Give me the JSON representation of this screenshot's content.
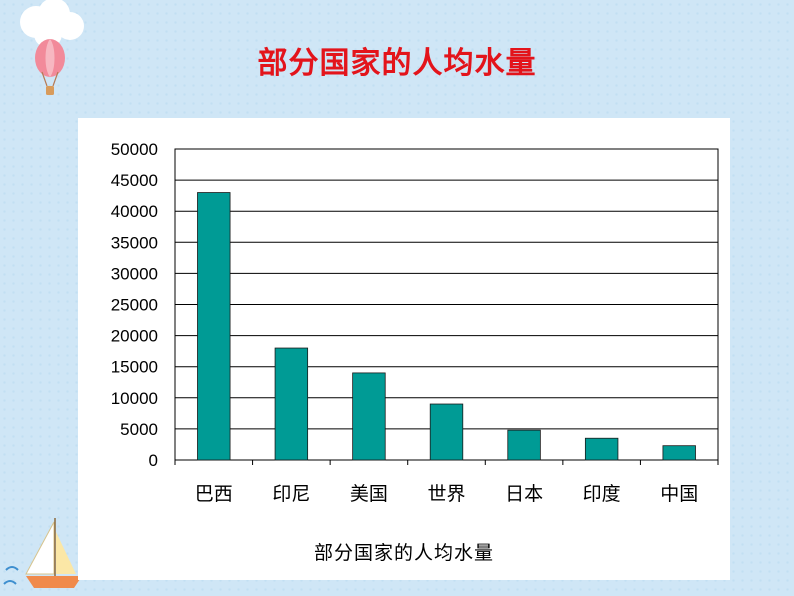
{
  "slide": {
    "title": "部分国家的人均水量"
  },
  "decorations": {
    "balloon": "hot-air-balloon-icon",
    "sailboat": "sailboat-icon"
  },
  "colors": {
    "title": "#e3141b",
    "bar": "#009b95",
    "background": "#cfe6f6"
  },
  "chart_data": {
    "type": "bar",
    "title": "部分国家的人均水量",
    "categories": [
      "巴西",
      "印尼",
      "美国",
      "世界",
      "日本",
      "印度",
      "中国"
    ],
    "values": [
      43000,
      18000,
      14000,
      9000,
      4800,
      3500,
      2300
    ],
    "ylim": [
      0,
      50000
    ],
    "yticks": [
      0,
      5000,
      10000,
      15000,
      20000,
      25000,
      30000,
      35000,
      40000,
      45000,
      50000
    ],
    "grid": true,
    "xlabel": "",
    "ylabel": ""
  }
}
